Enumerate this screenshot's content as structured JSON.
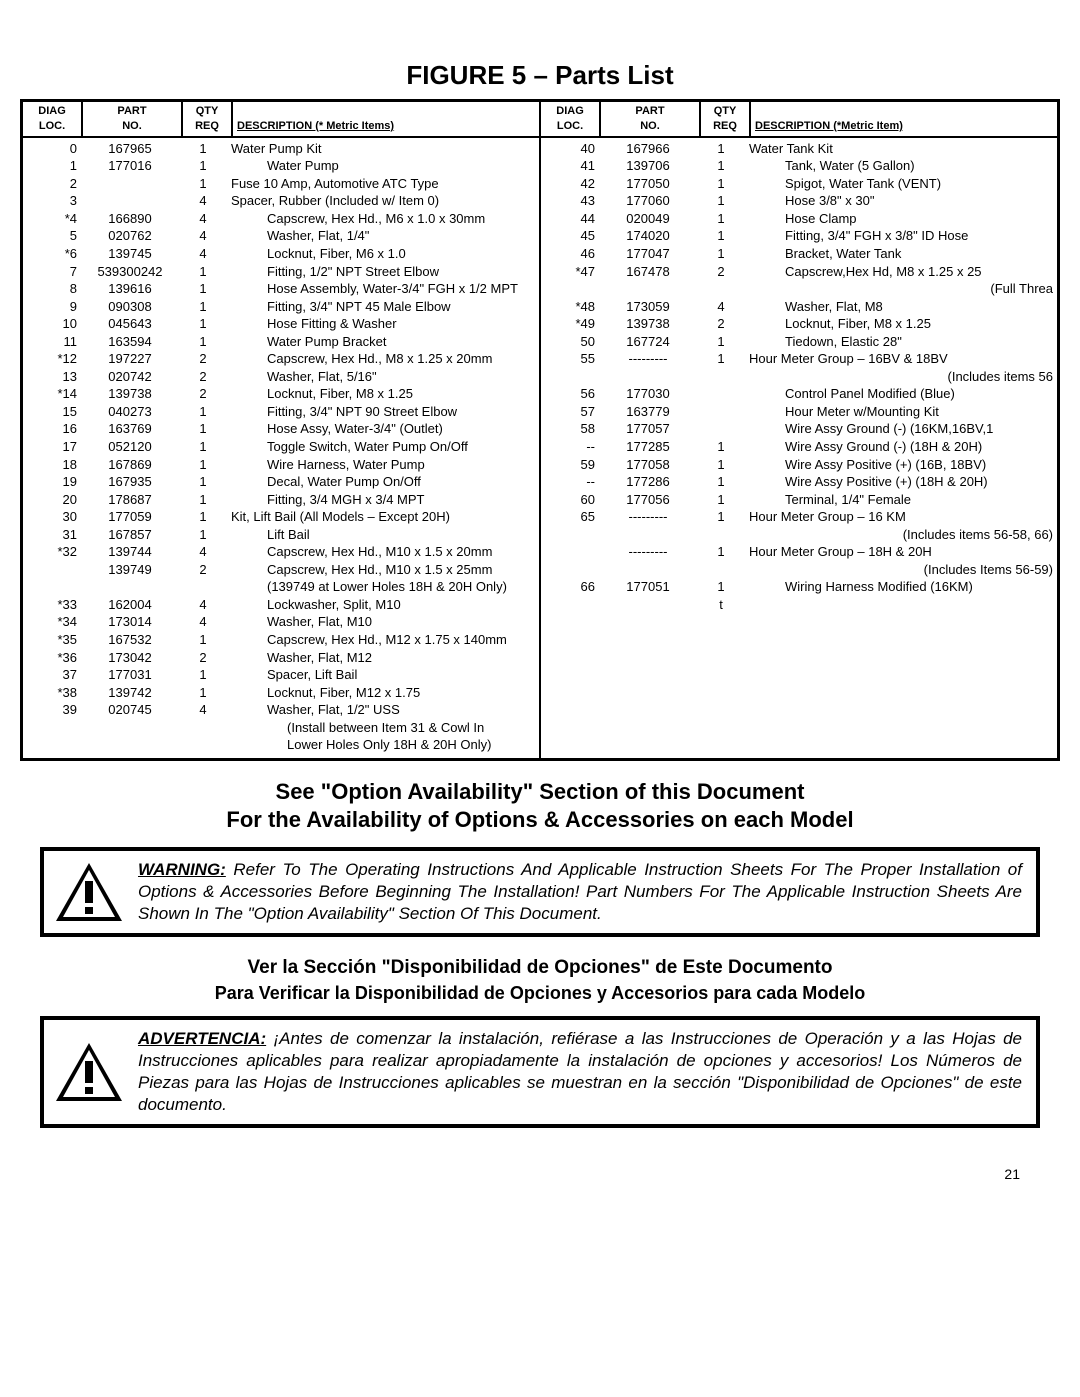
{
  "title": "FIGURE 5 – Parts List",
  "headers": {
    "loc1": "DIAG",
    "loc2": "LOC.",
    "part1": "PART",
    "part2": "NO.",
    "qty1": "QTY",
    "qty2": "REQ",
    "desc_left": "DESCRIPTION (* Metric Items)",
    "desc_right": "DESCRIPTION (*Metric Item)"
  },
  "left_rows": [
    {
      "loc": "0",
      "part": "167965",
      "qty": "1",
      "desc": "Water Pump Kit"
    },
    {
      "loc": "1",
      "part": "177016",
      "qty": "1",
      "desc": "Water Pump",
      "indent": 1
    },
    {
      "loc": "2",
      "part": "",
      "qty": "1",
      "desc": "Fuse   10 Amp, Automotive ATC Type",
      "indent": 0
    },
    {
      "loc": "3",
      "part": "",
      "qty": "4",
      "desc": "Spacer, Rubber (Included w/ Item 0)",
      "indent": 0
    },
    {
      "loc": "*4",
      "part": "166890",
      "qty": "4",
      "desc": "Capscrew, Hex Hd., M6 x 1.0 x 30mm",
      "indent": 1
    },
    {
      "loc": "5",
      "part": "020762",
      "qty": "4",
      "desc": "Washer, Flat, 1/4\"",
      "indent": 1
    },
    {
      "loc": "*6",
      "part": "139745",
      "qty": "4",
      "desc": "Locknut, Fiber, M6 x 1.0",
      "indent": 1
    },
    {
      "loc": "7",
      "part": "539300242",
      "qty": "1",
      "desc": "Fitting, 1/2\" NPT Street Elbow",
      "indent": 1
    },
    {
      "loc": "8",
      "part": "139616",
      "qty": "1",
      "desc": "Hose Assembly, Water-3/4\" FGH x 1/2 MPT",
      "indent": 1
    },
    {
      "loc": "9",
      "part": "090308",
      "qty": "1",
      "desc": "Fitting, 3/4\" NPT 45  Male Elbow",
      "indent": 1
    },
    {
      "loc": "10",
      "part": "045643",
      "qty": "1",
      "desc": "Hose Fitting & Washer",
      "indent": 1
    },
    {
      "loc": "11",
      "part": "163594",
      "qty": "1",
      "desc": "Water Pump Bracket",
      "indent": 1
    },
    {
      "loc": "*12",
      "part": "197227",
      "qty": "2",
      "desc": "Capscrew, Hex Hd., M8 x 1.25 x 20mm",
      "indent": 1
    },
    {
      "loc": "13",
      "part": "020742",
      "qty": "2",
      "desc": "Washer, Flat, 5/16\"",
      "indent": 1
    },
    {
      "loc": "*14",
      "part": "139738",
      "qty": "2",
      "desc": "Locknut, Fiber, M8 x 1.25",
      "indent": 1
    },
    {
      "loc": "15",
      "part": "040273",
      "qty": "1",
      "desc": "Fitting, 3/4\" NPT 90  Street Elbow",
      "indent": 1
    },
    {
      "loc": "16",
      "part": "163769",
      "qty": "1",
      "desc": "Hose Assy, Water-3/4\" (Outlet)",
      "indent": 1
    },
    {
      "loc": "17",
      "part": "052120",
      "qty": "1",
      "desc": "Toggle Switch, Water Pump On/Off",
      "indent": 1
    },
    {
      "loc": "18",
      "part": "167869",
      "qty": "1",
      "desc": "Wire Harness, Water Pump",
      "indent": 1
    },
    {
      "loc": "19",
      "part": "167935",
      "qty": "1",
      "desc": "Decal, Water Pump On/Off",
      "indent": 1
    },
    {
      "loc": "20",
      "part": "178687",
      "qty": "1",
      "desc": "Fitting, 3/4 MGH x 3/4 MPT",
      "indent": 1
    },
    {
      "loc": "",
      "part": "",
      "qty": "",
      "desc": ""
    },
    {
      "loc": "30",
      "part": "177059",
      "qty": "1",
      "desc": "Kit, Lift Bail (All Models – Except 20H)"
    },
    {
      "loc": "31",
      "part": "167857",
      "qty": "1",
      "desc": "Lift Bail",
      "indent": 1
    },
    {
      "loc": "*32",
      "part": "139744",
      "qty": "4",
      "desc": "Capscrew, Hex Hd., M10 x 1.5 x 20mm",
      "indent": 1
    },
    {
      "loc": "",
      "part": "139749",
      "qty": "2",
      "desc": "Capscrew, Hex Hd., M10 x 1.5 x 25mm",
      "indent": 1
    },
    {
      "loc": "",
      "part": "",
      "qty": "",
      "desc": "(139749 at Lower Holes 18H & 20H Only)",
      "indent": 1
    },
    {
      "loc": "*33",
      "part": "162004",
      "qty": "4",
      "desc": "Lockwasher, Split, M10",
      "indent": 1
    },
    {
      "loc": "*34",
      "part": "173014",
      "qty": "4",
      "desc": "Washer, Flat, M10",
      "indent": 1
    },
    {
      "loc": "*35",
      "part": "167532",
      "qty": "1",
      "desc": "Capscrew, Hex Hd., M12 x 1.75 x 140mm",
      "indent": 1
    },
    {
      "loc": "*36",
      "part": "173042",
      "qty": "2",
      "desc": "Washer, Flat, M12",
      "indent": 1
    },
    {
      "loc": "37",
      "part": "177031",
      "qty": "1",
      "desc": "Spacer, Lift Bail",
      "indent": 1
    },
    {
      "loc": "*38",
      "part": "139742",
      "qty": "1",
      "desc": "Locknut, Fiber, M12 x 1.75",
      "indent": 1
    },
    {
      "loc": "39",
      "part": "020745",
      "qty": "4",
      "desc": "Washer, Flat, 1/2\" USS",
      "indent": 1
    },
    {
      "loc": "",
      "part": "",
      "qty": "",
      "desc": "(Install between Item 31 & Cowl In",
      "indent": 2
    },
    {
      "loc": "",
      "part": "",
      "qty": "",
      "desc": "Lower Holes Only  18H & 20H Only)",
      "indent": 2
    }
  ],
  "right_rows": [
    {
      "loc": "",
      "part": "",
      "qty": "",
      "desc": ""
    },
    {
      "loc": "40",
      "part": "167966",
      "qty": "1",
      "desc": "Water Tank Kit"
    },
    {
      "loc": "41",
      "part": "139706",
      "qty": "1",
      "desc": "Tank, Water (5 Gallon)",
      "indent": 1
    },
    {
      "loc": "42",
      "part": "177050",
      "qty": "1",
      "desc": "Spigot, Water Tank (VENT)",
      "indent": 1
    },
    {
      "loc": "43",
      "part": "177060",
      "qty": "1",
      "desc": "Hose   3/8\" x 30\"",
      "indent": 1
    },
    {
      "loc": "44",
      "part": "020049",
      "qty": "1",
      "desc": "Hose Clamp",
      "indent": 1
    },
    {
      "loc": "45",
      "part": "174020",
      "qty": "1",
      "desc": "Fitting, 3/4\" FGH x 3/8\" ID Hose",
      "indent": 1
    },
    {
      "loc": "46",
      "part": "177047",
      "qty": "1",
      "desc": "Bracket, Water Tank",
      "indent": 1
    },
    {
      "loc": "*47",
      "part": "167478",
      "qty": "2",
      "desc": "Capscrew,Hex Hd, M8 x 1.25 x 25",
      "indent": 1
    },
    {
      "loc": "",
      "part": "",
      "qty": "",
      "desc": "(Full Threa",
      "align": "right"
    },
    {
      "loc": "*48",
      "part": "173059",
      "qty": "4",
      "desc": "Washer, Flat, M8",
      "indent": 1
    },
    {
      "loc": "*49",
      "part": "139738",
      "qty": "2",
      "desc": "Locknut, Fiber, M8 x 1.25",
      "indent": 1
    },
    {
      "loc": "50",
      "part": "167724",
      "qty": "1",
      "desc": "Tiedown, Elastic 28\"",
      "indent": 1
    },
    {
      "loc": "",
      "part": "",
      "qty": "",
      "desc": ""
    },
    {
      "loc": "55",
      "part": "---------",
      "qty": "1",
      "desc": "Hour Meter Group – 16BV & 18BV"
    },
    {
      "loc": "",
      "part": "",
      "qty": "",
      "desc": "(Includes items 56",
      "align": "right"
    },
    {
      "loc": "56",
      "part": "177030",
      "qty": "",
      "desc": "Control Panel  Modified (Blue)",
      "indent": 1
    },
    {
      "loc": "57",
      "part": "163779",
      "qty": "",
      "desc": "Hour Meter w/Mounting Kit",
      "indent": 1
    },
    {
      "loc": "58",
      "part": "177057",
      "qty": "",
      "desc": "Wire Assy   Ground (-) (16KM,16BV,1",
      "indent": 1
    },
    {
      "loc": "--",
      "part": "177285",
      "qty": "1",
      "desc": "Wire Assy   Ground (-) (18H & 20H)",
      "indent": 1
    },
    {
      "loc": "59",
      "part": "177058",
      "qty": "1",
      "desc": "Wire Assy   Positive (+) (16B, 18BV)",
      "indent": 1
    },
    {
      "loc": "--",
      "part": "177286",
      "qty": "1",
      "desc": "Wire Assy   Positive (+) (18H & 20H)",
      "indent": 1
    },
    {
      "loc": "",
      "part": "",
      "qty": "",
      "desc": ""
    },
    {
      "loc": "60",
      "part": "177056",
      "qty": "1",
      "desc": "Terminal, 1/4\"  Female",
      "indent": 1
    },
    {
      "loc": "65",
      "part": "---------",
      "qty": "1",
      "desc": "Hour Meter Group – 16 KM"
    },
    {
      "loc": "",
      "part": "",
      "qty": "",
      "desc": "(Includes items 56-58, 66)",
      "align": "right"
    },
    {
      "loc": "",
      "part": "---------",
      "qty": "1",
      "desc": "Hour Meter Group – 18H & 20H"
    },
    {
      "loc": "",
      "part": "",
      "qty": "",
      "desc": "(Includes Items 56-59)",
      "align": "right"
    },
    {
      "loc": "66",
      "part": "177051",
      "qty": "1",
      "desc": "Wiring Harness  Modified (16KM)",
      "indent": 1
    },
    {
      "loc": "",
      "part": "",
      "qty": "",
      "desc": ""
    },
    {
      "loc": "",
      "part": "",
      "qty": "",
      "desc": ""
    },
    {
      "loc": "",
      "part": "",
      "qty": "",
      "desc": ""
    },
    {
      "loc": "",
      "part": "",
      "qty": "",
      "desc": ""
    },
    {
      "loc": "",
      "part": "",
      "qty": "",
      "desc": ""
    },
    {
      "loc": "",
      "part": "",
      "qty": "",
      "desc": ""
    },
    {
      "loc": "",
      "part": "",
      "qty": "t",
      "desc": ""
    }
  ],
  "section_en_1": "See \"Option Availability\" Section of this Document",
  "section_en_2": "For the Availability of Options & Accessories on each Model",
  "warning_en": {
    "lead": "WARNING:",
    "body": "Refer To The Operating Instructions And Applicable Instruction Sheets For The Proper Installation of Options & Accessories Before Beginning The Installation!  Part Numbers For The Applicable Instruction Sheets Are Shown In The \"Option Availability\" Section Of This Document."
  },
  "section_es_1": "Ver la Sección \"Disponibilidad de Opciones\" de Este Documento",
  "section_es_2": "Para Verificar la Disponibilidad de Opciones y Accesorios para cada Modelo",
  "warning_es": {
    "lead": "ADVERTENCIA:",
    "body": "¡Antes de comenzar la instalación, refiérase a las Instrucciones de Operación y a las Hojas de Instrucciones aplicables para realizar apropiadamente la instalación de opciones y accesorios!  Los Números de Piezas para las Hojas de Instrucciones aplicables se muestran en la sección \"Disponibilidad de Opciones\" de este documento."
  },
  "page_number": "21"
}
